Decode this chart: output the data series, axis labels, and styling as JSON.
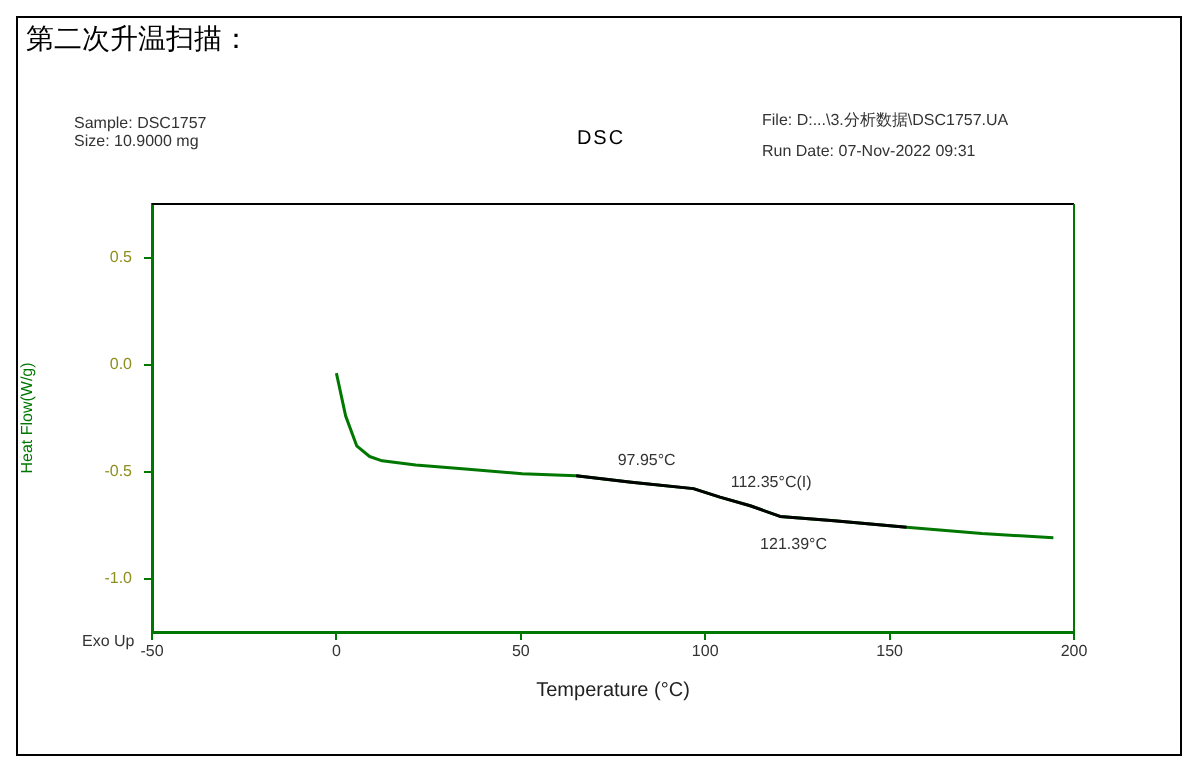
{
  "chart_data": {
    "type": "line",
    "title": "DSC",
    "subtitle": "第二次升温扫描：",
    "xlabel": "Temperature (°C)",
    "ylabel": "Heat Flow(W/g)",
    "x": [
      0,
      2.5,
      5.5,
      9,
      12.4,
      21.5,
      35.8,
      50.4,
      65,
      80,
      96.8,
      104,
      112.2,
      120.3,
      135,
      154.6,
      175,
      194.4
    ],
    "series": [
      {
        "color": "#007700",
        "values": [
          -0.04,
          -0.24,
          -0.38,
          -0.43,
          -0.45,
          -0.47,
          -0.49,
          -0.51,
          -0.52,
          -0.55,
          -0.58,
          -0.62,
          -0.66,
          -0.71,
          -0.73,
          -0.76,
          -0.79,
          -0.81
        ]
      },
      {
        "color": "#000000",
        "x": [
          65,
          80,
          96.8,
          104,
          112.2,
          120.3,
          135,
          154.6
        ],
        "values": [
          -0.52,
          -0.55,
          -0.58,
          -0.62,
          -0.66,
          -0.71,
          -0.73,
          -0.76
        ]
      }
    ],
    "xlim": [
      -50,
      200
    ],
    "xticks": [
      -50,
      0,
      50,
      100,
      150,
      200
    ],
    "ylim": [
      -1.25,
      0.75
    ],
    "yticks": [
      {
        "value": -1,
        "label": "-1.0"
      },
      {
        "value": -0.5,
        "label": "-0.5"
      },
      {
        "value": 0,
        "label": "0.0"
      },
      0.5
    ],
    "grid": false,
    "legend": false,
    "marker": "none",
    "line_style": "solid",
    "annotations": [
      "Sample: DSC1757",
      "Size:  10.9000 mg",
      "File: D:...\\3.分析数据\\DSC1757.UA",
      "Run Date: 07-Nov-2022 09:31",
      "Exo Up",
      {
        "text": "97.95°C",
        "x": 97.95,
        "y": -0.58
      },
      {
        "text": "112.35°C(I)",
        "x": 112.35,
        "y": -0.665
      },
      {
        "text": "121.39°C",
        "x": 121.39,
        "y": -0.71
      }
    ]
  }
}
